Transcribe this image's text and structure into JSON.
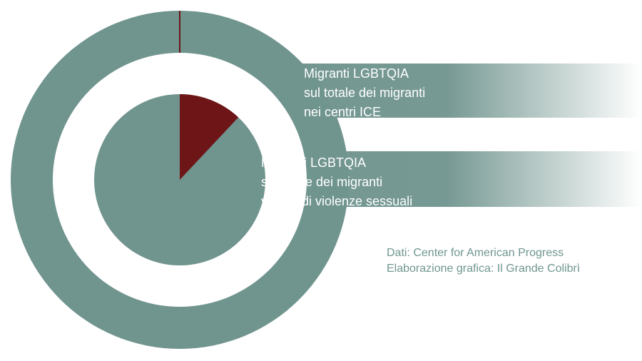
{
  "chart_data": {
    "type": "pie",
    "subtype": "nested-donut",
    "colors": {
      "primary": "#70948e",
      "highlight": "#6e1518",
      "background": "#ffffff"
    },
    "rings": [
      {
        "name": "outer",
        "label_lines": [
          "Migranti LGBTQIA",
          "sul totale dei migranti",
          "nei centri ICE"
        ],
        "highlight_fraction": 0.001
      },
      {
        "name": "inner",
        "label_lines": [
          "Migranti LGBTQIA",
          "sul totale dei migranti",
          "vittime di violenze sessuali"
        ],
        "highlight_fraction": 0.12
      }
    ],
    "credits": [
      "Dati: Center for American Progress",
      "Elaborazione grafica: Il Grande Colibrì"
    ]
  }
}
